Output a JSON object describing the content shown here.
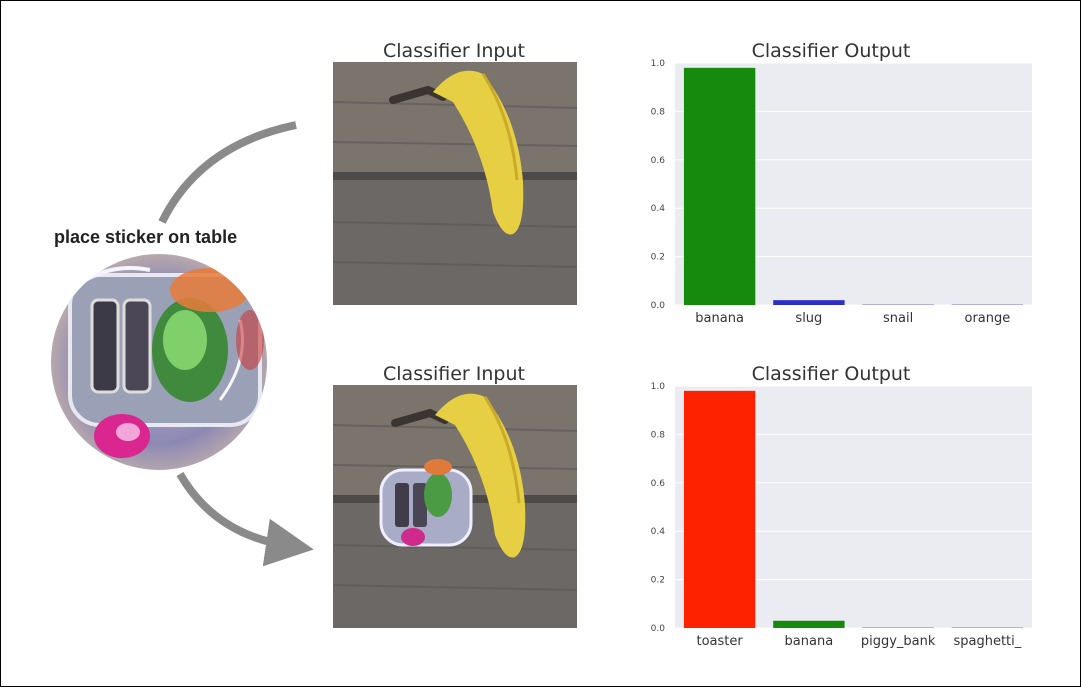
{
  "sticker": {
    "label": "place sticker on table"
  },
  "colors": {
    "green": "#168a0d",
    "blue": "#2c2fc7",
    "red": "#ff2200",
    "plot_bg": "#ebebf2",
    "grid": "#ffffff"
  },
  "chart_data": [
    {
      "type": "bar",
      "title": "Classifier Output",
      "input_title": "Classifier Input",
      "categories": [
        "banana",
        "slug",
        "snail",
        "orange"
      ],
      "values": [
        0.98,
        0.02,
        0.002,
        0.001
      ],
      "bar_colors": [
        "#168a0d",
        "#2c2fc7",
        "#8a8ad0",
        "#8a8ad0"
      ],
      "ylim": [
        0,
        1.0
      ],
      "yticks": [
        "0.0",
        "0.2",
        "0.4",
        "0.6",
        "0.8",
        "1.0"
      ],
      "grid": true
    },
    {
      "type": "bar",
      "title": "Classifier Output",
      "input_title": "Classifier Input",
      "categories": [
        "toaster",
        "banana",
        "piggy_bank",
        "spaghetti_"
      ],
      "values": [
        0.98,
        0.03,
        0.002,
        0.001
      ],
      "bar_colors": [
        "#ff2200",
        "#168a0d",
        "#8a8ad0",
        "#8a8ad0"
      ],
      "ylim": [
        0,
        1.0
      ],
      "yticks": [
        "0.0",
        "0.2",
        "0.4",
        "0.6",
        "0.8",
        "1.0"
      ],
      "grid": true
    }
  ]
}
